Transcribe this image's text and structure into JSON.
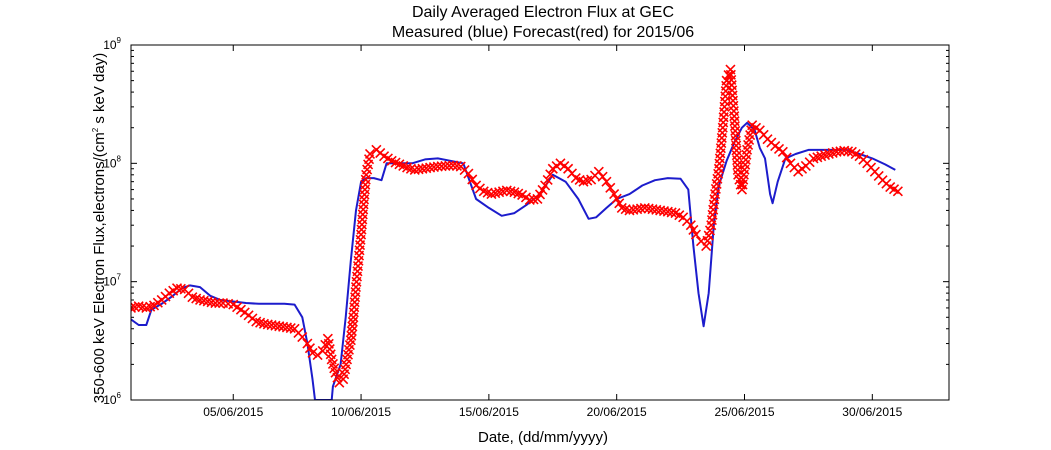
{
  "chart_data": {
    "type": "line",
    "title": "Daily Averaged Electron Flux at GEC",
    "subtitle": "Measured (blue) Forecast(red) for 2015/06",
    "xlabel": "Date, (dd/mm/yyyy)",
    "ylabel": "350-600 keV Electron Flux,electrons/(cm² s keV day)",
    "ylabel_parts": {
      "main": "350-600 keV Electron Flux,electrons/(cm",
      "exp": "2",
      "rest": " s keV day)"
    },
    "x_unit": "day of June 2015",
    "xlim": [
      1,
      33
    ],
    "ylim": [
      1000000,
      1000000000
    ],
    "y_scale": "log",
    "grid": false,
    "x_ticks": [
      {
        "value": 5,
        "label": "05/06/2015"
      },
      {
        "value": 10,
        "label": "10/06/2015"
      },
      {
        "value": 15,
        "label": "15/06/2015"
      },
      {
        "value": 20,
        "label": "20/06/2015"
      },
      {
        "value": 25,
        "label": "25/06/2015"
      },
      {
        "value": 30,
        "label": "30/06/2015"
      }
    ],
    "y_ticks": [
      {
        "value": 1000000,
        "base": "10",
        "exp": "6"
      },
      {
        "value": 10000000,
        "base": "10",
        "exp": "7"
      },
      {
        "value": 100000000,
        "base": "10",
        "exp": "8"
      },
      {
        "value": 1000000000,
        "base": "10",
        "exp": "9"
      }
    ],
    "series": [
      {
        "name": "Measured",
        "color": "#1c1ccc",
        "style": "line",
        "points": [
          [
            1.0,
            4800000.0
          ],
          [
            1.3,
            4300000.0
          ],
          [
            1.6,
            4300000.0
          ],
          [
            1.8,
            5800000.0
          ],
          [
            2.2,
            6500000.0
          ],
          [
            2.6,
            7500000.0
          ],
          [
            3.0,
            8800000.0
          ],
          [
            3.3,
            9300000.0
          ],
          [
            3.7,
            9000000.0
          ],
          [
            4.1,
            7600000.0
          ],
          [
            4.5,
            7000000.0
          ],
          [
            5.0,
            6800000.0
          ],
          [
            5.5,
            6600000.0
          ],
          [
            6.0,
            6500000.0
          ],
          [
            6.5,
            6500000.0
          ],
          [
            7.0,
            6500000.0
          ],
          [
            7.4,
            6400000.0
          ],
          [
            7.7,
            5000000.0
          ],
          [
            7.9,
            3000000.0
          ],
          [
            8.1,
            1500000.0
          ],
          [
            8.2,
            1000000.0
          ],
          [
            8.85,
            1000000.0
          ],
          [
            8.9,
            1300000.0
          ],
          [
            9.2,
            2000000.0
          ],
          [
            9.4,
            5000000.0
          ],
          [
            9.6,
            15000000.0
          ],
          [
            9.8,
            40000000.0
          ],
          [
            10.0,
            70000000.0
          ],
          [
            10.2,
            75000000.0
          ],
          [
            10.5,
            75000000.0
          ],
          [
            10.8,
            72000000.0
          ],
          [
            11.0,
            100000000.0
          ],
          [
            11.5,
            100000000.0
          ],
          [
            12.0,
            100000000.0
          ],
          [
            12.5,
            108000000.0
          ],
          [
            13.0,
            110000000.0
          ],
          [
            13.5,
            105000000.0
          ],
          [
            14.0,
            100000000.0
          ],
          [
            14.5,
            50000000.0
          ],
          [
            15.0,
            42000000.0
          ],
          [
            15.5,
            36000000.0
          ],
          [
            16.0,
            38000000.0
          ],
          [
            16.5,
            45000000.0
          ],
          [
            17.0,
            55000000.0
          ],
          [
            17.5,
            80000000.0
          ],
          [
            18.0,
            70000000.0
          ],
          [
            18.5,
            50000000.0
          ],
          [
            18.9,
            34000000.0
          ],
          [
            19.2,
            35000000.0
          ],
          [
            19.6,
            42000000.0
          ],
          [
            20.0,
            50000000.0
          ],
          [
            20.5,
            55000000.0
          ],
          [
            21.0,
            65000000.0
          ],
          [
            21.5,
            72000000.0
          ],
          [
            22.0,
            75000000.0
          ],
          [
            22.5,
            74000000.0
          ],
          [
            22.8,
            60000000.0
          ],
          [
            23.0,
            20000000.0
          ],
          [
            23.2,
            8000000.0
          ],
          [
            23.4,
            4200000.0
          ],
          [
            23.6,
            8000000.0
          ],
          [
            23.8,
            30000000.0
          ],
          [
            24.0,
            65000000.0
          ],
          [
            24.3,
            105000000.0
          ],
          [
            24.6,
            150000000.0
          ],
          [
            24.9,
            200000000.0
          ],
          [
            25.1,
            220000000.0
          ],
          [
            25.4,
            190000000.0
          ],
          [
            25.6,
            135000000.0
          ],
          [
            25.8,
            110000000.0
          ],
          [
            26.0,
            55000000.0
          ],
          [
            26.1,
            46000000.0
          ],
          [
            26.3,
            70000000.0
          ],
          [
            26.6,
            110000000.0
          ],
          [
            27.0,
            120000000.0
          ],
          [
            27.5,
            130000000.0
          ],
          [
            28.0,
            130000000.0
          ],
          [
            28.5,
            130000000.0
          ],
          [
            29.0,
            130000000.0
          ],
          [
            29.5,
            120000000.0
          ],
          [
            30.0,
            110000000.0
          ],
          [
            30.5,
            98000000.0
          ],
          [
            30.9,
            88000000.0
          ]
        ]
      },
      {
        "name": "Forecast",
        "color": "#ff0000",
        "style": "x-markers",
        "points": [
          [
            1.0,
            6000000.0
          ],
          [
            1.3,
            6200000.0
          ],
          [
            1.6,
            6000000.0
          ],
          [
            1.9,
            6300000.0
          ],
          [
            2.2,
            7000000.0
          ],
          [
            2.5,
            8000000.0
          ],
          [
            2.8,
            8800000.0
          ],
          [
            3.1,
            8600000.0
          ],
          [
            3.4,
            7400000.0
          ],
          [
            3.7,
            7000000.0
          ],
          [
            4.0,
            6800000.0
          ],
          [
            4.3,
            6600000.0
          ],
          [
            4.6,
            6600000.0
          ],
          [
            5.0,
            6400000.0
          ],
          [
            5.3,
            5800000.0
          ],
          [
            5.6,
            5200000.0
          ],
          [
            5.9,
            4600000.0
          ],
          [
            6.2,
            4400000.0
          ],
          [
            6.5,
            4300000.0
          ],
          [
            6.8,
            4200000.0
          ],
          [
            7.1,
            4100000.0
          ],
          [
            7.4,
            4000000.0
          ],
          [
            7.7,
            3400000.0
          ],
          [
            7.9,
            3000000.0
          ],
          [
            8.1,
            2500000.0
          ],
          [
            8.3,
            2400000.0
          ],
          [
            8.5,
            2600000.0
          ],
          [
            8.7,
            3300000.0
          ],
          [
            8.85,
            2200000.0
          ],
          [
            9.0,
            1700000.0
          ],
          [
            9.15,
            1400000.0
          ],
          [
            9.3,
            1500000.0
          ],
          [
            9.45,
            2200000.0
          ],
          [
            9.6,
            3200000.0
          ],
          [
            9.7,
            5000000.0
          ],
          [
            9.8,
            9000000.0
          ],
          [
            9.9,
            15000000.0
          ],
          [
            10.0,
            25000000.0
          ],
          [
            10.1,
            45000000.0
          ],
          [
            10.2,
            80000000.0
          ],
          [
            10.35,
            120000000.0
          ],
          [
            10.6,
            130000000.0
          ],
          [
            10.9,
            115000000.0
          ],
          [
            11.2,
            105000000.0
          ],
          [
            11.5,
            98000000.0
          ],
          [
            11.8,
            92000000.0
          ],
          [
            12.1,
            88000000.0
          ],
          [
            12.4,
            90000000.0
          ],
          [
            12.7,
            92000000.0
          ],
          [
            13.0,
            94000000.0
          ],
          [
            13.3,
            95000000.0
          ],
          [
            13.6,
            96000000.0
          ],
          [
            13.9,
            94000000.0
          ],
          [
            14.2,
            82000000.0
          ],
          [
            14.5,
            65000000.0
          ],
          [
            14.8,
            58000000.0
          ],
          [
            15.1,
            55000000.0
          ],
          [
            15.4,
            57000000.0
          ],
          [
            15.7,
            59000000.0
          ],
          [
            16.0,
            57000000.0
          ],
          [
            16.3,
            54000000.0
          ],
          [
            16.6,
            49000000.0
          ],
          [
            16.9,
            50000000.0
          ],
          [
            17.2,
            65000000.0
          ],
          [
            17.5,
            90000000.0
          ],
          [
            17.8,
            100000000.0
          ],
          [
            18.1,
            90000000.0
          ],
          [
            18.4,
            75000000.0
          ],
          [
            18.7,
            70000000.0
          ],
          [
            19.0,
            73000000.0
          ],
          [
            19.3,
            85000000.0
          ],
          [
            19.6,
            70000000.0
          ],
          [
            19.9,
            55000000.0
          ],
          [
            20.2,
            42000000.0
          ],
          [
            20.5,
            40000000.0
          ],
          [
            20.8,
            41000000.0
          ],
          [
            21.1,
            42000000.0
          ],
          [
            21.4,
            41000000.0
          ],
          [
            21.7,
            40000000.0
          ],
          [
            22.0,
            39000000.0
          ],
          [
            22.3,
            38000000.0
          ],
          [
            22.6,
            35000000.0
          ],
          [
            22.9,
            30000000.0
          ],
          [
            23.1,
            25000000.0
          ],
          [
            23.3,
            22000000.0
          ],
          [
            23.5,
            20000000.0
          ],
          [
            23.7,
            30000000.0
          ],
          [
            23.85,
            55000000.0
          ],
          [
            24.0,
            90000000.0
          ],
          [
            24.15,
            200000000.0
          ],
          [
            24.3,
            500000000.0
          ],
          [
            24.45,
            620000000.0
          ],
          [
            24.6,
            250000000.0
          ],
          [
            24.75,
            80000000.0
          ],
          [
            24.9,
            60000000.0
          ],
          [
            25.1,
            130000000.0
          ],
          [
            25.3,
            210000000.0
          ],
          [
            25.6,
            190000000.0
          ],
          [
            25.9,
            160000000.0
          ],
          [
            26.2,
            140000000.0
          ],
          [
            26.5,
            125000000.0
          ],
          [
            26.8,
            100000000.0
          ],
          [
            27.1,
            85000000.0
          ],
          [
            27.4,
            95000000.0
          ],
          [
            27.7,
            110000000.0
          ],
          [
            28.0,
            115000000.0
          ],
          [
            28.3,
            120000000.0
          ],
          [
            28.6,
            125000000.0
          ],
          [
            28.9,
            128000000.0
          ],
          [
            29.2,
            125000000.0
          ],
          [
            29.5,
            115000000.0
          ],
          [
            29.8,
            100000000.0
          ],
          [
            30.1,
            85000000.0
          ],
          [
            30.4,
            72000000.0
          ],
          [
            30.7,
            63000000.0
          ],
          [
            31.0,
            58000000.0
          ]
        ]
      }
    ]
  }
}
